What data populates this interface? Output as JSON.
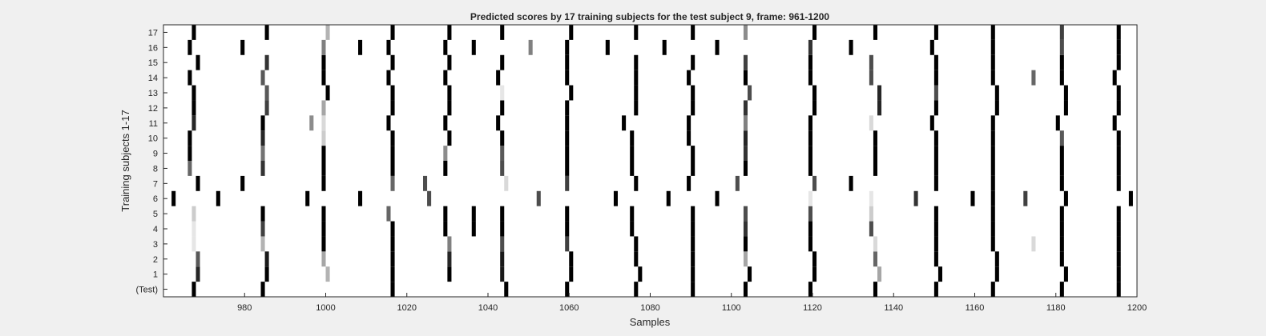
{
  "chart_data": {
    "type": "heatmap",
    "title": "Predicted scores by 17 training subjects for the test subject 9, frame: 961-1200",
    "xlabel": "Samples",
    "ylabel": "Training subjects 1-17",
    "xlim": [
      961,
      1200
    ],
    "xticks": [
      980,
      1000,
      1020,
      1040,
      1060,
      1080,
      1100,
      1120,
      1140,
      1160,
      1180,
      1200
    ],
    "row_labels": [
      "(Test)",
      "1",
      "2",
      "3",
      "4",
      "5",
      "6",
      "7",
      "8",
      "9",
      "10",
      "11",
      "12",
      "13",
      "14",
      "15",
      "16",
      "17"
    ],
    "colormap": "gray-inverted",
    "background_color": "#ffffff",
    "grid": false,
    "rows": [
      {
        "label": "(Test)",
        "marks": [
          [
            968,
            1
          ],
          [
            985,
            1
          ],
          [
            1017,
            1
          ],
          [
            1045,
            1
          ],
          [
            1060,
            1
          ],
          [
            1077,
            1
          ],
          [
            1091,
            1
          ],
          [
            1104,
            1
          ],
          [
            1120,
            1
          ],
          [
            1136,
            1
          ],
          [
            1151,
            1
          ],
          [
            1165,
            1
          ],
          [
            1182,
            1
          ],
          [
            1196,
            1
          ]
        ]
      },
      {
        "label": "1",
        "marks": [
          [
            969,
            0.85
          ],
          [
            986,
            1
          ],
          [
            1001,
            0.3
          ],
          [
            1017,
            1
          ],
          [
            1031,
            1
          ],
          [
            1044,
            0.9
          ],
          [
            1061,
            1
          ],
          [
            1078,
            1
          ],
          [
            1091,
            1
          ],
          [
            1105,
            1
          ],
          [
            1121,
            1
          ],
          [
            1137,
            0.35
          ],
          [
            1152,
            1
          ],
          [
            1166,
            1
          ],
          [
            1183,
            1
          ],
          [
            1196,
            1
          ]
        ]
      },
      {
        "label": "2",
        "marks": [
          [
            969,
            0.65
          ],
          [
            986,
            0.9
          ],
          [
            1000,
            0.35
          ],
          [
            1017,
            1
          ],
          [
            1031,
            0.85
          ],
          [
            1044,
            0.9
          ],
          [
            1061,
            1
          ],
          [
            1077,
            1
          ],
          [
            1091,
            1
          ],
          [
            1104,
            0.35
          ],
          [
            1121,
            1
          ],
          [
            1136,
            0.6
          ],
          [
            1151,
            1
          ],
          [
            1166,
            1
          ],
          [
            1182,
            1
          ],
          [
            1196,
            1
          ]
        ]
      },
      {
        "label": "3",
        "marks": [
          [
            968,
            0.1
          ],
          [
            985,
            0.3
          ],
          [
            1000,
            1
          ],
          [
            1017,
            1
          ],
          [
            1031,
            0.5
          ],
          [
            1044,
            0.7
          ],
          [
            1060,
            0.75
          ],
          [
            1077,
            1
          ],
          [
            1091,
            1
          ],
          [
            1104,
            1
          ],
          [
            1120,
            1
          ],
          [
            1136,
            0.15
          ],
          [
            1151,
            1
          ],
          [
            1165,
            1
          ],
          [
            1175,
            0.15
          ],
          [
            1182,
            1
          ],
          [
            1196,
            1
          ]
        ]
      },
      {
        "label": "4",
        "marks": [
          [
            968,
            0.1
          ],
          [
            985,
            0.75
          ],
          [
            1000,
            1
          ],
          [
            1017,
            1
          ],
          [
            1030,
            1
          ],
          [
            1037,
            1
          ],
          [
            1044,
            1
          ],
          [
            1060,
            1
          ],
          [
            1076,
            1
          ],
          [
            1091,
            1
          ],
          [
            1104,
            0.8
          ],
          [
            1120,
            1
          ],
          [
            1135,
            0.7
          ],
          [
            1151,
            1
          ],
          [
            1165,
            1
          ],
          [
            1182,
            1
          ],
          [
            1196,
            1
          ]
        ]
      },
      {
        "label": "5",
        "marks": [
          [
            968,
            0.2
          ],
          [
            985,
            1
          ],
          [
            1000,
            1
          ],
          [
            1016,
            0.6
          ],
          [
            1030,
            1
          ],
          [
            1037,
            1
          ],
          [
            1044,
            1
          ],
          [
            1060,
            1
          ],
          [
            1076,
            1
          ],
          [
            1091,
            1
          ],
          [
            1104,
            0.7
          ],
          [
            1120,
            0.7
          ],
          [
            1135,
            0.2
          ],
          [
            1151,
            1
          ],
          [
            1165,
            1
          ],
          [
            1182,
            1
          ],
          [
            1196,
            1
          ]
        ]
      },
      {
        "label": "6",
        "marks": [
          [
            963,
            1
          ],
          [
            974,
            1
          ],
          [
            996,
            1
          ],
          [
            1009,
            1
          ],
          [
            1026,
            0.7
          ],
          [
            1053,
            0.7
          ],
          [
            1072,
            1
          ],
          [
            1085,
            1
          ],
          [
            1097,
            1
          ],
          [
            1120,
            0.1
          ],
          [
            1135,
            0.1
          ],
          [
            1146,
            0.8
          ],
          [
            1160,
            1
          ],
          [
            1165,
            1
          ],
          [
            1173,
            0.75
          ],
          [
            1183,
            1
          ],
          [
            1199,
            1
          ]
        ]
      },
      {
        "label": "7",
        "marks": [
          [
            969,
            1
          ],
          [
            980,
            1
          ],
          [
            1000,
            1
          ],
          [
            1017,
            0.6
          ],
          [
            1025,
            0.7
          ],
          [
            1045,
            0.15
          ],
          [
            1060,
            0.75
          ],
          [
            1077,
            1
          ],
          [
            1090,
            1
          ],
          [
            1102,
            0.7
          ],
          [
            1121,
            0.7
          ],
          [
            1130,
            1
          ],
          [
            1151,
            1
          ],
          [
            1165,
            1
          ],
          [
            1182,
            1
          ],
          [
            1196,
            1
          ]
        ]
      },
      {
        "label": "8",
        "marks": [
          [
            967,
            0.6
          ],
          [
            985,
            0.8
          ],
          [
            1000,
            1
          ],
          [
            1017,
            1
          ],
          [
            1030,
            1
          ],
          [
            1044,
            0.7
          ],
          [
            1060,
            1
          ],
          [
            1076,
            1
          ],
          [
            1091,
            1
          ],
          [
            1104,
            1
          ],
          [
            1120,
            1
          ],
          [
            1136,
            1
          ],
          [
            1151,
            1
          ],
          [
            1165,
            1
          ],
          [
            1182,
            1
          ],
          [
            1196,
            1
          ]
        ]
      },
      {
        "label": "9",
        "marks": [
          [
            967,
            1
          ],
          [
            985,
            0.55
          ],
          [
            1000,
            1
          ],
          [
            1017,
            1
          ],
          [
            1030,
            0.45
          ],
          [
            1044,
            0.65
          ],
          [
            1060,
            1
          ],
          [
            1076,
            1
          ],
          [
            1091,
            1
          ],
          [
            1104,
            0.8
          ],
          [
            1120,
            1
          ],
          [
            1136,
            1
          ],
          [
            1151,
            1
          ],
          [
            1165,
            1
          ],
          [
            1182,
            1
          ],
          [
            1196,
            1
          ]
        ]
      },
      {
        "label": "10",
        "marks": [
          [
            967,
            1
          ],
          [
            985,
            0.85
          ],
          [
            1000,
            0.2
          ],
          [
            1017,
            1
          ],
          [
            1031,
            1
          ],
          [
            1044,
            1
          ],
          [
            1060,
            1
          ],
          [
            1076,
            1
          ],
          [
            1090,
            1
          ],
          [
            1104,
            0.85
          ],
          [
            1120,
            1
          ],
          [
            1136,
            1
          ],
          [
            1151,
            1
          ],
          [
            1165,
            1
          ],
          [
            1182,
            0.65
          ],
          [
            1196,
            1
          ]
        ]
      },
      {
        "label": "11",
        "marks": [
          [
            968,
            0.85
          ],
          [
            985,
            1
          ],
          [
            997,
            0.45
          ],
          [
            1000,
            0.15
          ],
          [
            1016,
            1
          ],
          [
            1030,
            1
          ],
          [
            1043,
            1
          ],
          [
            1060,
            1
          ],
          [
            1074,
            1
          ],
          [
            1090,
            1
          ],
          [
            1104,
            0.5
          ],
          [
            1120,
            1
          ],
          [
            1135,
            0.15
          ],
          [
            1150,
            1
          ],
          [
            1165,
            1
          ],
          [
            1181,
            1
          ],
          [
            1195,
            1
          ]
        ]
      },
      {
        "label": "12",
        "marks": [
          [
            968,
            1
          ],
          [
            986,
            0.75
          ],
          [
            1000,
            0.35
          ],
          [
            1017,
            1
          ],
          [
            1031,
            1
          ],
          [
            1044,
            1
          ],
          [
            1060,
            1
          ],
          [
            1077,
            1
          ],
          [
            1091,
            1
          ],
          [
            1104,
            0.8
          ],
          [
            1121,
            1
          ],
          [
            1137,
            0.85
          ],
          [
            1151,
            1
          ],
          [
            1166,
            1
          ],
          [
            1183,
            1
          ],
          [
            1196,
            1
          ]
        ]
      },
      {
        "label": "13",
        "marks": [
          [
            968,
            1
          ],
          [
            986,
            0.65
          ],
          [
            1001,
            1
          ],
          [
            1017,
            1
          ],
          [
            1031,
            1
          ],
          [
            1044,
            0.1
          ],
          [
            1061,
            1
          ],
          [
            1077,
            1
          ],
          [
            1091,
            1
          ],
          [
            1105,
            0.7
          ],
          [
            1121,
            1
          ],
          [
            1137,
            0.85
          ],
          [
            1151,
            0.7
          ],
          [
            1166,
            1
          ],
          [
            1183,
            1
          ],
          [
            1196,
            1
          ]
        ]
      },
      {
        "label": "14",
        "marks": [
          [
            967,
            1
          ],
          [
            985,
            0.65
          ],
          [
            1000,
            1
          ],
          [
            1016,
            1
          ],
          [
            1030,
            1
          ],
          [
            1043,
            1
          ],
          [
            1060,
            1
          ],
          [
            1077,
            1
          ],
          [
            1090,
            1
          ],
          [
            1104,
            1
          ],
          [
            1120,
            1
          ],
          [
            1135,
            0.7
          ],
          [
            1151,
            1
          ],
          [
            1165,
            1
          ],
          [
            1175,
            0.6
          ],
          [
            1182,
            1
          ],
          [
            1195,
            1
          ]
        ]
      },
      {
        "label": "15",
        "marks": [
          [
            969,
            1
          ],
          [
            986,
            0.8
          ],
          [
            1000,
            1
          ],
          [
            1017,
            1
          ],
          [
            1031,
            1
          ],
          [
            1044,
            1
          ],
          [
            1060,
            1
          ],
          [
            1077,
            1
          ],
          [
            1091,
            1
          ],
          [
            1104,
            0.75
          ],
          [
            1120,
            1
          ],
          [
            1135,
            0.7
          ],
          [
            1151,
            1
          ],
          [
            1165,
            1
          ],
          [
            1182,
            1
          ],
          [
            1196,
            1
          ]
        ]
      },
      {
        "label": "16",
        "marks": [
          [
            967,
            1
          ],
          [
            980,
            1
          ],
          [
            1000,
            0.5
          ],
          [
            1009,
            1
          ],
          [
            1016,
            1
          ],
          [
            1030,
            1
          ],
          [
            1037,
            1
          ],
          [
            1051,
            0.5
          ],
          [
            1060,
            1
          ],
          [
            1070,
            1
          ],
          [
            1084,
            1
          ],
          [
            1097,
            1
          ],
          [
            1120,
            0.8
          ],
          [
            1130,
            1
          ],
          [
            1150,
            1
          ],
          [
            1165,
            1
          ],
          [
            1182,
            0.7
          ],
          [
            1196,
            1
          ]
        ]
      },
      {
        "label": "17",
        "marks": [
          [
            968,
            1
          ],
          [
            986,
            1
          ],
          [
            1001,
            0.3
          ],
          [
            1017,
            1
          ],
          [
            1031,
            1
          ],
          [
            1044,
            1
          ],
          [
            1061,
            1
          ],
          [
            1077,
            1
          ],
          [
            1091,
            1
          ],
          [
            1104,
            0.45
          ],
          [
            1121,
            1
          ],
          [
            1136,
            1
          ],
          [
            1151,
            1
          ],
          [
            1165,
            1
          ],
          [
            1182,
            0.75
          ],
          [
            1196,
            1
          ]
        ]
      }
    ]
  }
}
